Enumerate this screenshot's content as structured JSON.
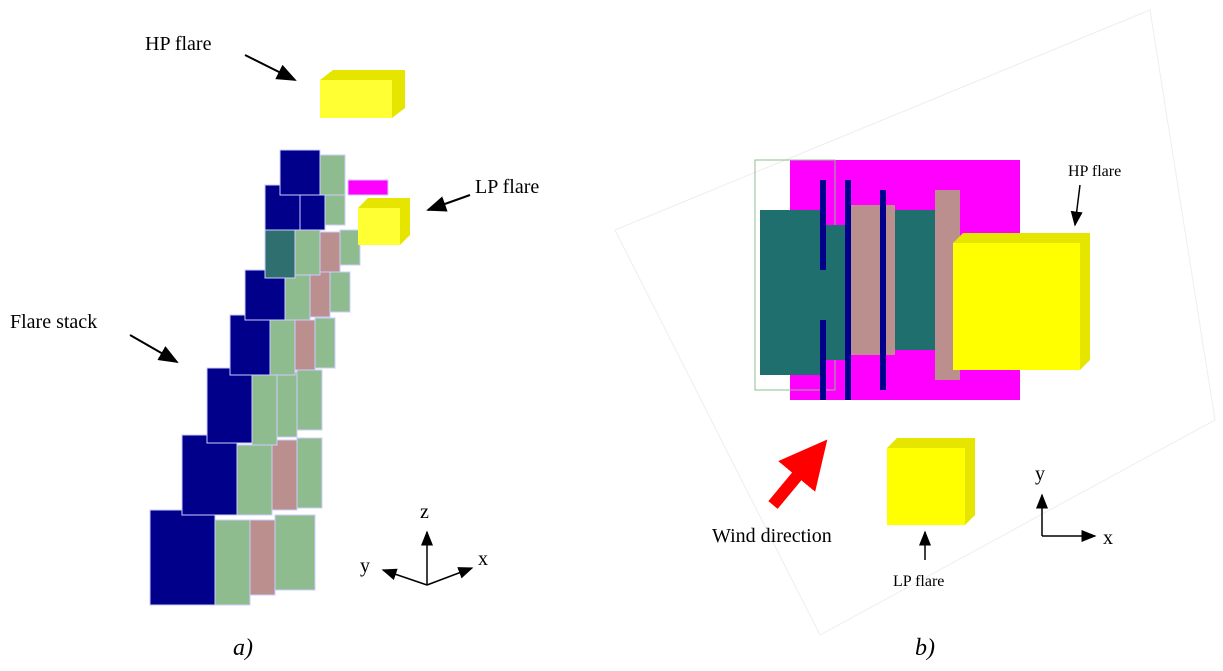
{
  "panels": [
    {
      "caption": "a)",
      "annotations": [
        "HP flare",
        "LP flare",
        "Flare stack"
      ],
      "axes": [
        "z",
        "y",
        "x"
      ]
    },
    {
      "caption": "b)",
      "annotations": [
        "HP flare",
        "Wind direction",
        "LP flare"
      ],
      "axes": [
        "y",
        "x"
      ]
    }
  ]
}
